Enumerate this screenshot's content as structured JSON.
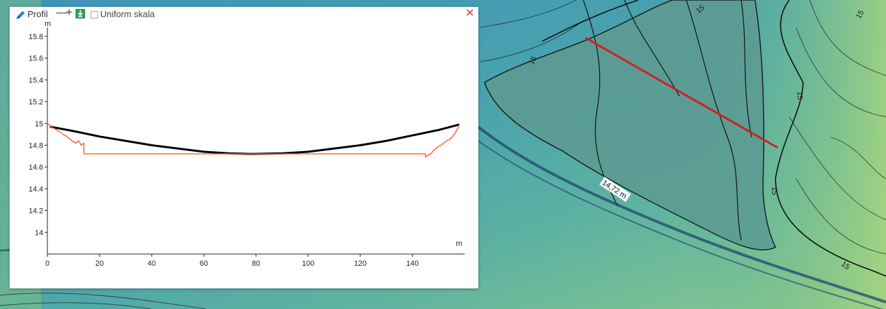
{
  "panel": {
    "title": "Profil",
    "minus_label": "—",
    "plus_label": "+",
    "download_label": "↓",
    "uniform_scale_label": "Uniform skala",
    "uniform_scale_checked": false,
    "close_label": "✕",
    "icons": {
      "edit": "pencil-icon",
      "download": "download-icon",
      "close": "close-icon"
    }
  },
  "map": {
    "measurement_label": "14,72 m",
    "contour_labels": [
      "15",
      "15",
      "15",
      "15",
      "15",
      "15"
    ],
    "colors": {
      "water": "#5c9c93",
      "profile_line": "#d11f1f",
      "contour": "#1a1a1a"
    }
  },
  "chart_data": {
    "type": "line",
    "xlabel": "m",
    "ylabel": "m",
    "xlim": [
      0,
      160
    ],
    "ylim": [
      13.8,
      15.85
    ],
    "x_ticks": [
      0,
      20,
      40,
      60,
      80,
      100,
      120,
      140
    ],
    "y_ticks": [
      14,
      14.2,
      14.4,
      14.6,
      14.8,
      15,
      15.2,
      15.4,
      15.6,
      15.8
    ],
    "series": [
      {
        "color": "#000000",
        "x": [
          1,
          10,
          20,
          30,
          40,
          50,
          60,
          70,
          78,
          90,
          100,
          110,
          120,
          130,
          140,
          150,
          158
        ],
        "y": [
          14.97,
          14.93,
          14.88,
          14.84,
          14.8,
          14.77,
          14.74,
          14.725,
          14.72,
          14.725,
          14.74,
          14.77,
          14.8,
          14.84,
          14.89,
          14.94,
          14.99
        ]
      },
      {
        "color": "#ff5a1f",
        "x": [
          0,
          1,
          2,
          3,
          4,
          5,
          6,
          7,
          8,
          9,
          10,
          11,
          12,
          13,
          14,
          14,
          145,
          145,
          146,
          147,
          148,
          149,
          150,
          151,
          152,
          153,
          154,
          155,
          156,
          157,
          158
        ],
        "y": [
          15.0,
          14.98,
          14.96,
          14.95,
          14.93,
          14.92,
          14.9,
          14.89,
          14.87,
          14.85,
          14.83,
          14.82,
          14.84,
          14.8,
          14.82,
          14.72,
          14.72,
          14.69,
          14.71,
          14.72,
          14.75,
          14.77,
          14.79,
          14.8,
          14.82,
          14.84,
          14.85,
          14.87,
          14.9,
          14.94,
          14.99
        ]
      }
    ]
  }
}
